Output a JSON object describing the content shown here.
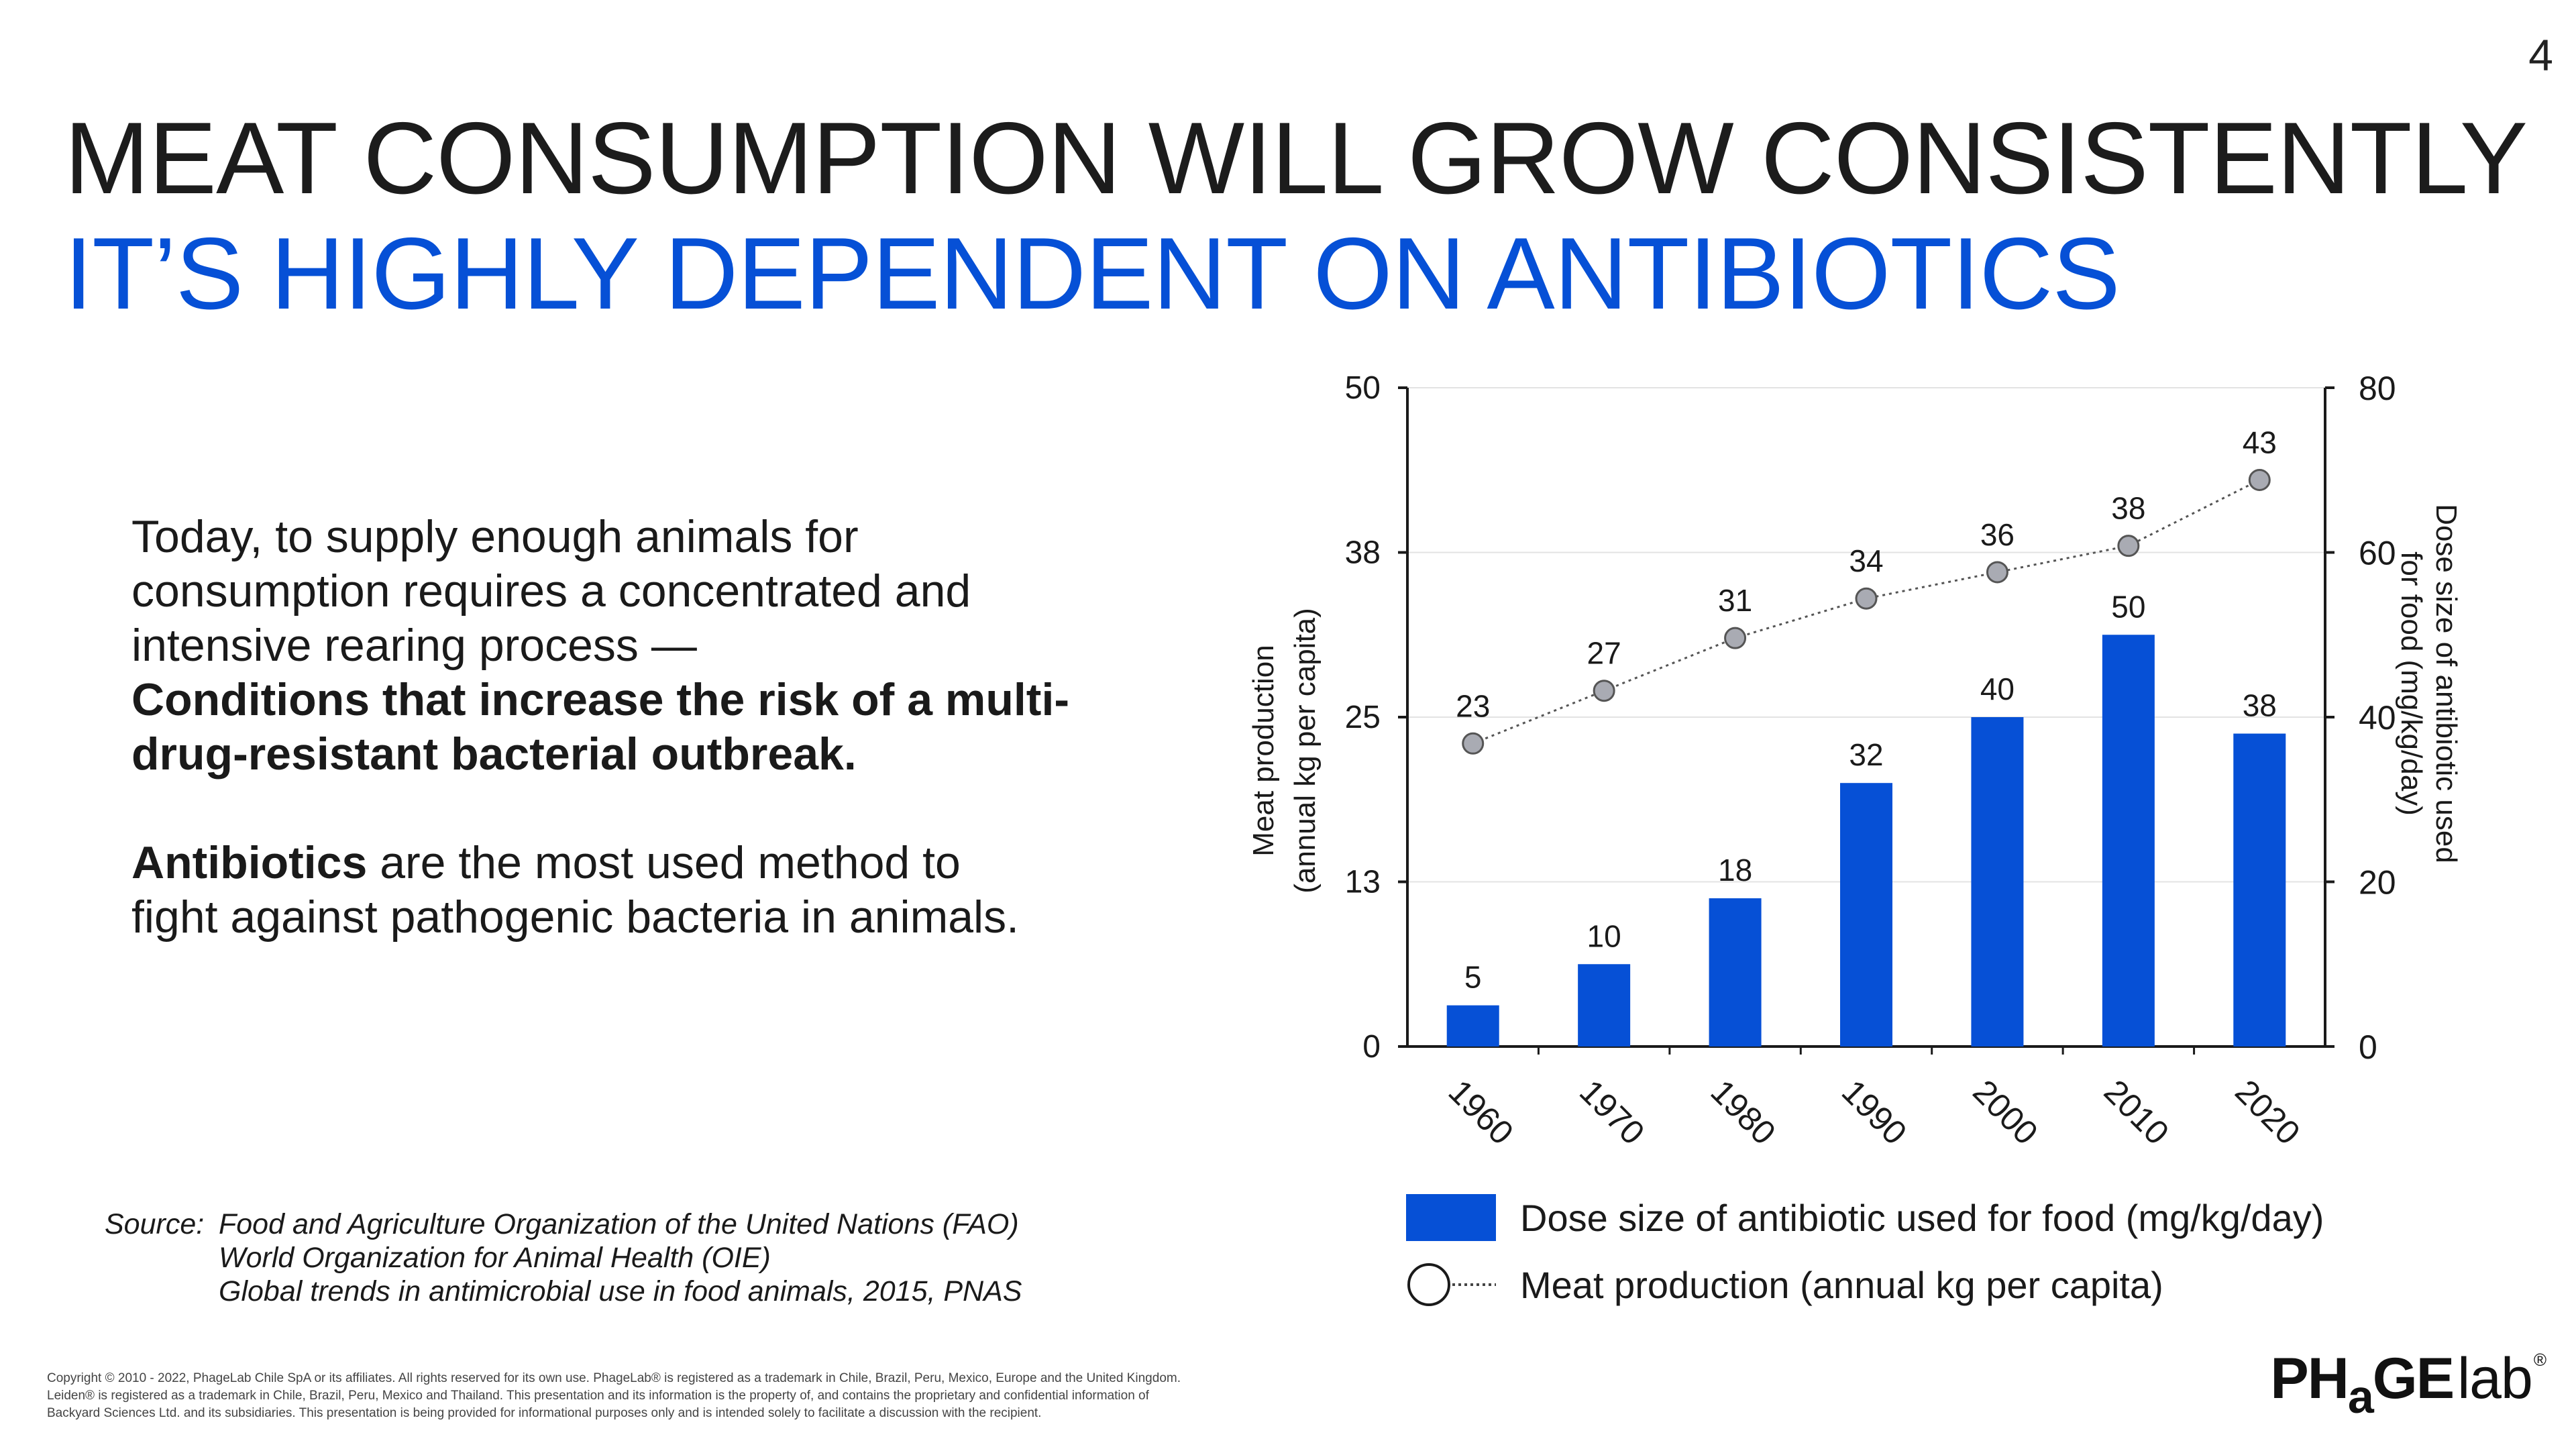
{
  "page_number": "4",
  "title": {
    "line1": "MEAT CONSUMPTION WILL GROW CONSISTENTLY",
    "line2": "IT’S HIGHLY DEPENDENT ON ANTIBIOTICS"
  },
  "body": {
    "p1_line1": "Today, to supply enough animals for",
    "p1_line2": "consumption requires a concentrated and",
    "p1_line3": "intensive rearing process —",
    "p1_bold_line1": "Conditions that increase the risk of a multi-",
    "p1_bold_line2": "drug-resistant bacterial outbreak.",
    "p2_bold": "Antibiotics",
    "p2_line1_rest": " are the most used method to",
    "p2_line2": "fight against pathogenic bacteria in animals."
  },
  "source": {
    "label": "Source:",
    "lines": [
      "Food and Agriculture Organization of the United Nations (FAO)",
      "World Organization for Animal Health (OIE)",
      "Global trends in antimicrobial use in food animals, 2015, PNAS"
    ]
  },
  "copyright": {
    "line1": "Copyright © 2010 - 2022, PhageLab Chile SpA or its affiliates. All rights reserved for its own use. PhageLab® is registered as a trademark in Chile, Brazil, Peru, Mexico, Europe and the United Kingdom.",
    "line2": "Leiden® is registered as a trademark in Chile, Brazil, Peru, Mexico and Thailand. This presentation and its information is the property of, and contains the proprietary and confidential information of",
    "line3": "Backyard Sciences Ltd. and its subsidiaries. This presentation is being provided for informational purposes only and is intended solely to facilitate a discussion with the recipient."
  },
  "logo": {
    "part1": "PH",
    "part2": "a",
    "part3": "GE",
    "part4": "lab",
    "reg": "®"
  },
  "colors": {
    "bar": "#0650d6",
    "point": "#a9abb3",
    "title_accent": "#0650d6"
  },
  "chart_data": {
    "type": "bar+line",
    "categories": [
      "1960",
      "1970",
      "1980",
      "1990",
      "2000",
      "2010",
      "2020"
    ],
    "series": [
      {
        "name": "Dose size of antibiotic used for food (mg/kg/day)",
        "type": "bar",
        "axis": "right",
        "values": [
          5,
          10,
          18,
          32,
          40,
          50,
          38
        ],
        "labels": [
          "5",
          "10",
          "18",
          "32",
          "40",
          "50",
          "38"
        ]
      },
      {
        "name": "Meat production (annual kg per capita)",
        "type": "line",
        "axis": "left",
        "values": [
          23,
          27,
          31,
          34,
          36,
          38,
          43
        ],
        "labels": [
          "23",
          "27",
          "31",
          "34",
          "36",
          "38",
          "43"
        ]
      }
    ],
    "left_axis": {
      "label_line1": "Meat production",
      "label_line2": "(annual kg per capita)",
      "ylim": [
        0,
        50
      ],
      "ticks": [
        0,
        13,
        25,
        38,
        50
      ],
      "tick_labels": [
        "0",
        "13",
        "25",
        "38",
        "50"
      ]
    },
    "right_axis": {
      "label_line1": "Dose size of antibiotic used",
      "label_line2": "for food (mg/kg/day)",
      "ylim": [
        0,
        80
      ],
      "ticks": [
        0,
        20,
        40,
        60,
        80
      ],
      "tick_labels": [
        "0",
        "20",
        "40",
        "60",
        "80"
      ]
    },
    "gridlines": true,
    "legend": {
      "bar_label": "Dose size of antibiotic used for food (mg/kg/day)",
      "line_label": "Meat production (annual kg per capita)"
    }
  }
}
